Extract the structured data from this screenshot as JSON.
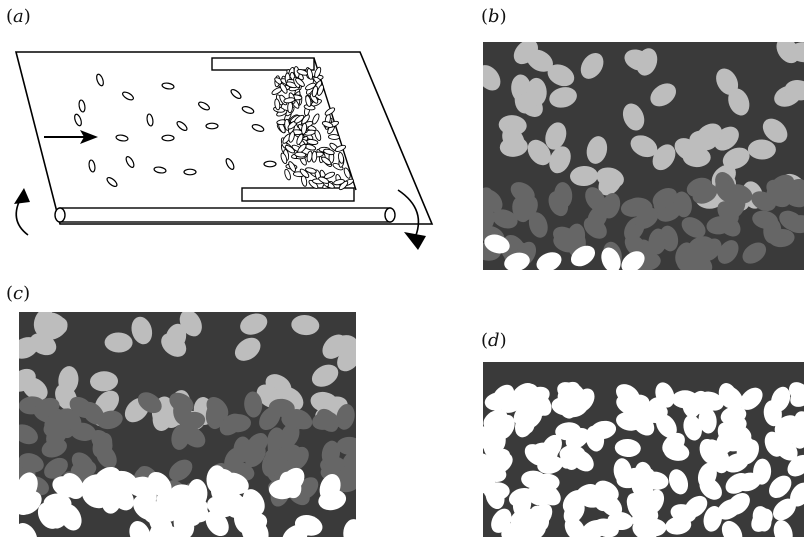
{
  "figure": {
    "panels": [
      {
        "id": "a",
        "label_open": "(",
        "letter": "a",
        "label_close": ")"
      },
      {
        "id": "b",
        "label_open": "(",
        "letter": "b",
        "label_close": ")"
      },
      {
        "id": "c",
        "label_open": "(",
        "letter": "c",
        "label_close": ")"
      },
      {
        "id": "d",
        "label_open": "(",
        "letter": "d",
        "label_close": ")"
      }
    ]
  },
  "colors": {
    "background_dark": "#3a3a3a",
    "grain_light": "#bdbdbd",
    "grain_mid": "#666666",
    "grain_white": "#ffffff",
    "line": "#000000"
  }
}
